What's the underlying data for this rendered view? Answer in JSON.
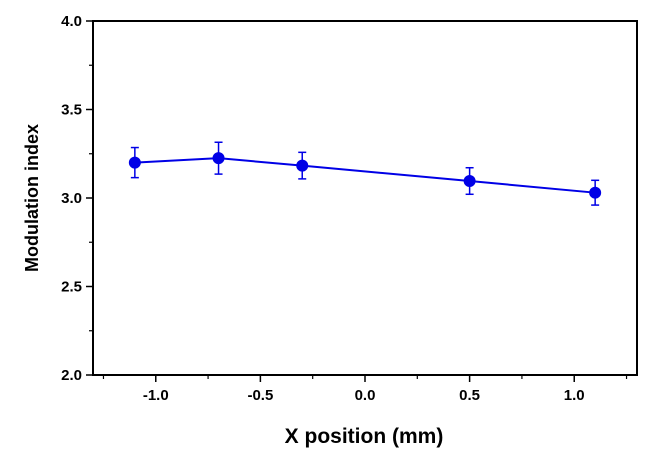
{
  "chart_data": {
    "type": "line",
    "xlabel": "X position (mm)",
    "ylabel": "Modulation index",
    "xlim": [
      -1.3,
      1.3
    ],
    "ylim": [
      2.0,
      4.0
    ],
    "x_ticks": [
      -1.0,
      -0.5,
      0.0,
      0.5,
      1.0
    ],
    "x_tick_labels": [
      "-1.0",
      "-0.5",
      "0.0",
      "0.5",
      "1.0"
    ],
    "y_ticks": [
      2.0,
      2.5,
      3.0,
      3.5,
      4.0
    ],
    "y_tick_labels": [
      "2.0",
      "2.5",
      "3.0",
      "3.5",
      "4.0"
    ],
    "grid": false,
    "series": [
      {
        "color": "#0000e6",
        "marker": "circle",
        "x": [
          -1.1,
          -0.7,
          -0.3,
          0.5,
          1.1
        ],
        "y": [
          3.2,
          3.225,
          3.183,
          3.096,
          3.03
        ],
        "error": [
          0.085,
          0.09,
          0.075,
          0.075,
          0.07
        ]
      }
    ]
  }
}
